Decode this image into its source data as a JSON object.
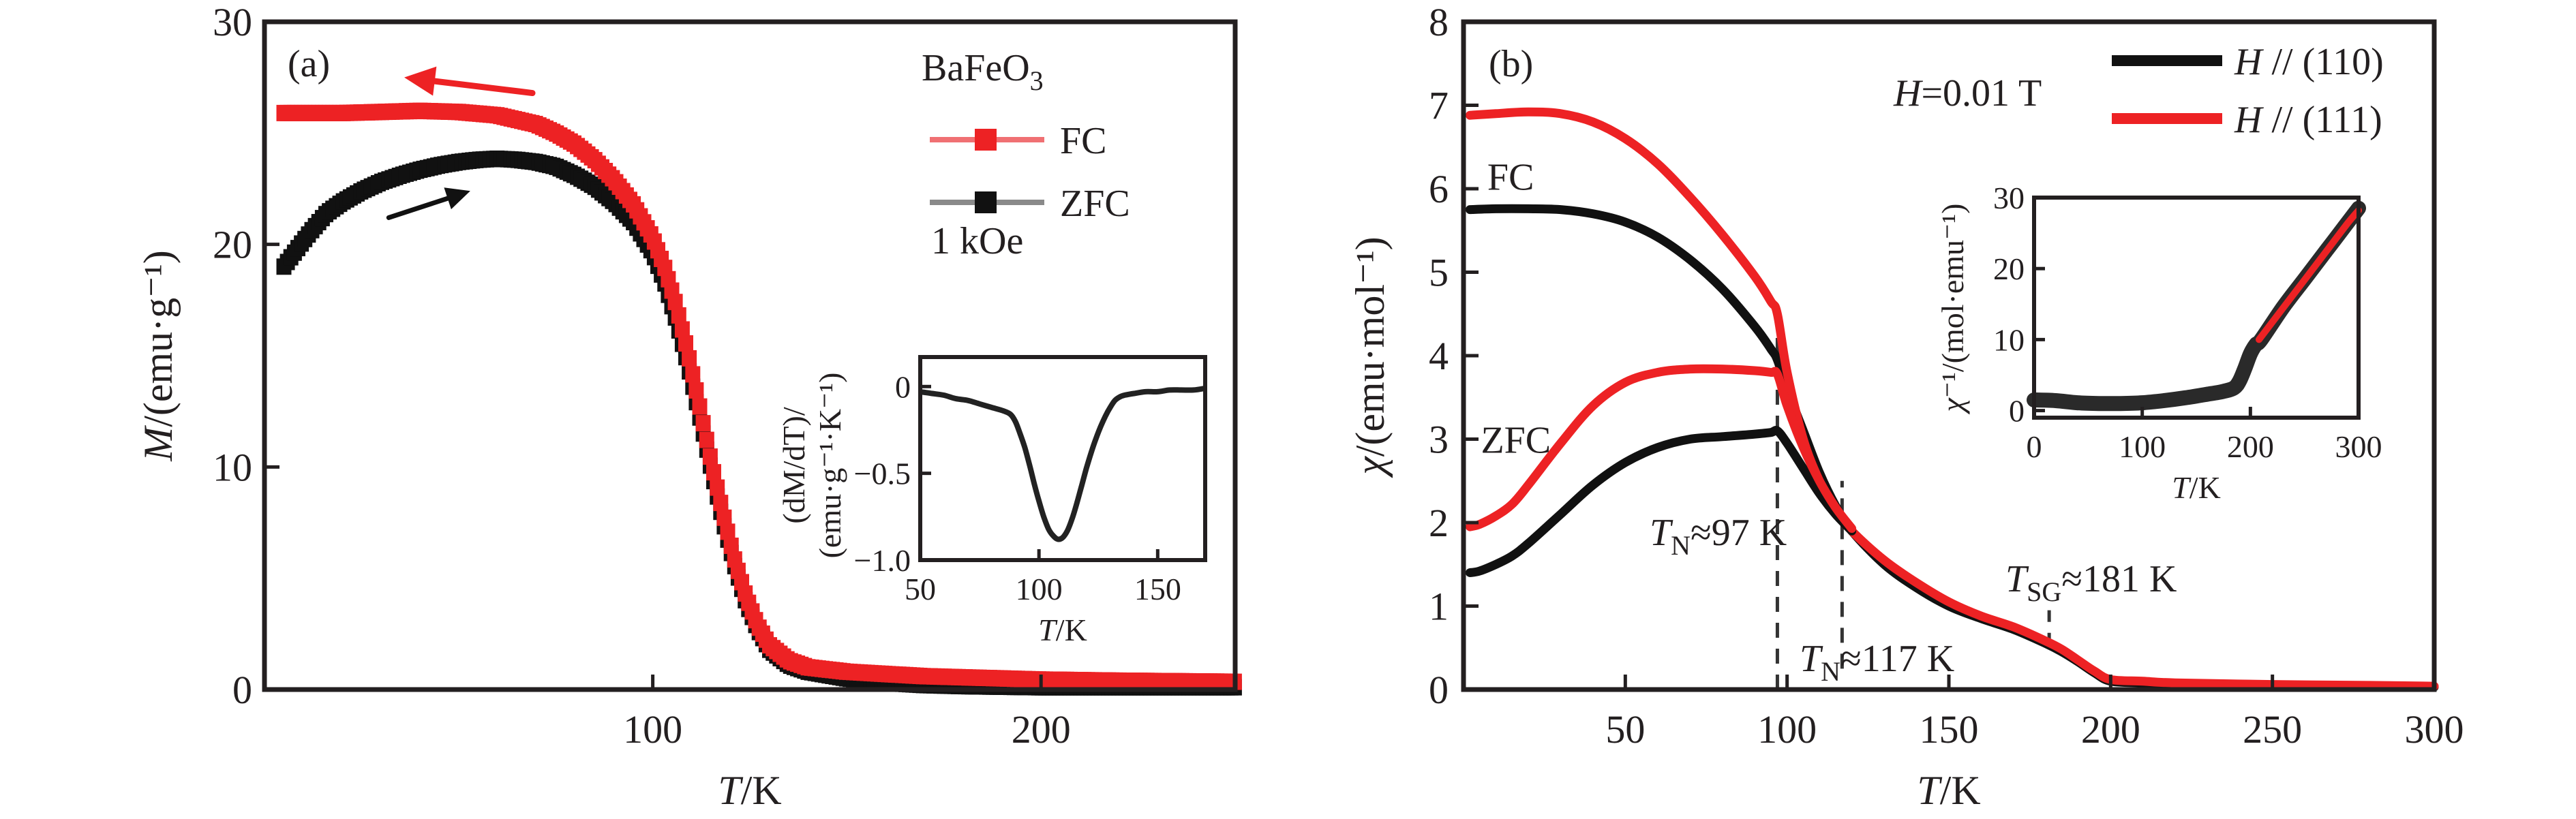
{
  "colors": {
    "red": "#ed2224",
    "black": "#111111",
    "ink": "#231f20",
    "legend_red_line": "#f07073",
    "legend_black_line": "#8a8a8a"
  },
  "chart_data": [
    {
      "panel": "a",
      "type": "scatter",
      "panel_label": "(a)",
      "xlabel": "T/K",
      "ylabel": "M/(emu·g⁻¹)",
      "xlim": [
        0,
        250
      ],
      "ylim": [
        0,
        30
      ],
      "xticks": [
        100,
        200
      ],
      "yticks": [
        0,
        10,
        20,
        30
      ],
      "legend": {
        "title": "BaFeO₃",
        "position": "top-right",
        "entries": [
          "FC",
          "ZFC"
        ],
        "note": "1 kOe"
      },
      "series": [
        {
          "name": "FC",
          "color": "red",
          "marker": "square",
          "x": [
            5,
            10,
            20,
            30,
            40,
            50,
            60,
            70,
            75,
            80,
            85,
            90,
            95,
            100,
            103,
            106,
            109,
            112,
            115,
            118,
            121,
            124,
            127,
            130,
            135,
            140,
            150,
            160,
            170,
            180,
            200,
            220,
            250
          ],
          "y": [
            25.9,
            25.9,
            25.9,
            25.95,
            26.0,
            25.95,
            25.8,
            25.4,
            25.0,
            24.5,
            23.8,
            22.9,
            21.8,
            20.3,
            19.0,
            17.3,
            15.2,
            12.8,
            10.3,
            8.0,
            5.9,
            4.2,
            2.9,
            2.0,
            1.3,
            1.0,
            0.8,
            0.7,
            0.6,
            0.55,
            0.45,
            0.4,
            0.35
          ]
        },
        {
          "name": "ZFC",
          "color": "black",
          "marker": "square",
          "x": [
            5,
            8,
            12,
            16,
            20,
            25,
            30,
            35,
            40,
            45,
            50,
            55,
            60,
            65,
            70,
            75,
            80,
            85,
            90,
            95,
            100,
            103,
            106,
            109,
            112,
            115,
            118,
            121,
            124,
            127,
            130,
            135,
            140,
            150,
            160,
            170,
            180,
            200,
            220,
            250
          ],
          "y": [
            19.0,
            19.7,
            20.6,
            21.4,
            21.9,
            22.4,
            22.8,
            23.1,
            23.35,
            23.55,
            23.7,
            23.8,
            23.85,
            23.8,
            23.7,
            23.5,
            23.1,
            22.6,
            21.9,
            21.0,
            19.6,
            18.3,
            16.6,
            14.6,
            12.3,
            9.9,
            7.6,
            5.6,
            3.9,
            2.7,
            1.8,
            1.1,
            0.8,
            0.5,
            0.3,
            0.2,
            0.15,
            0.1,
            0.1,
            0.1
          ]
        }
      ],
      "annotations": [
        {
          "type": "arrow",
          "color": "red",
          "from": [
            69,
            26.8
          ],
          "to": [
            36,
            27.5
          ]
        },
        {
          "type": "arrow",
          "color": "black",
          "from": [
            32,
            21.2
          ],
          "to": [
            53,
            22.4
          ]
        }
      ],
      "inset": {
        "type": "line",
        "xlabel": "T/K",
        "ylabel_line1": "(dM/dT)/",
        "ylabel_line2": "(emu·g⁻¹·K⁻¹)",
        "xlim": [
          50,
          170
        ],
        "ylim": [
          -1.0,
          0.17
        ],
        "xticks": [
          50,
          100,
          150
        ],
        "yticks": [
          0,
          -0.5,
          -1.0
        ],
        "ytick_labels": [
          "0",
          "−0.5",
          "−1.0"
        ],
        "series": [
          {
            "name": "dM/dT",
            "color": "black",
            "x": [
              50,
              55,
              60,
              65,
              70,
              75,
              80,
              85,
              88,
              90,
              92,
              94,
              96,
              98,
              100,
              102,
              104,
              106,
              108,
              110,
              112,
              114,
              116,
              118,
              120,
              122,
              124,
              126,
              128,
              130,
              132,
              134,
              136,
              140,
              145,
              150,
              155,
              160,
              165,
              170
            ],
            "y": [
              -0.03,
              -0.04,
              -0.05,
              -0.07,
              -0.08,
              -0.1,
              -0.12,
              -0.14,
              -0.16,
              -0.2,
              -0.27,
              -0.35,
              -0.45,
              -0.56,
              -0.66,
              -0.75,
              -0.82,
              -0.86,
              -0.88,
              -0.87,
              -0.83,
              -0.76,
              -0.67,
              -0.57,
              -0.47,
              -0.38,
              -0.3,
              -0.23,
              -0.17,
              -0.12,
              -0.08,
              -0.06,
              -0.05,
              -0.04,
              -0.03,
              -0.03,
              -0.02,
              -0.02,
              -0.02,
              -0.01
            ]
          }
        ]
      }
    },
    {
      "panel": "b",
      "type": "line",
      "panel_label": "(b)",
      "xlabel": "T/K",
      "ylabel": "χ/(emu·mol⁻¹)",
      "xlim": [
        0,
        300
      ],
      "ylim": [
        0,
        8
      ],
      "xticks": [
        50,
        100,
        150,
        200,
        250,
        300
      ],
      "yticks": [
        0,
        1,
        2,
        3,
        4,
        5,
        6,
        7,
        8
      ],
      "legend": {
        "position": "top-right",
        "note": "H=0.01 T",
        "entries": [
          "H // (110)",
          "H // (111)"
        ]
      },
      "series": [
        {
          "name": "H // (110) FC",
          "color": "black",
          "x": [
            2,
            10,
            20,
            30,
            40,
            50,
            60,
            70,
            80,
            90,
            95,
            97,
            100,
            105,
            110,
            115,
            120,
            130,
            140,
            150,
            160,
            170,
            180,
            185,
            190,
            195,
            200,
            210,
            220,
            250,
            280,
            300
          ],
          "y": [
            5.75,
            5.76,
            5.76,
            5.75,
            5.7,
            5.6,
            5.42,
            5.15,
            4.8,
            4.35,
            4.08,
            3.95,
            3.6,
            3.1,
            2.6,
            2.2,
            1.9,
            1.5,
            1.22,
            1.0,
            0.85,
            0.72,
            0.55,
            0.45,
            0.33,
            0.2,
            0.1,
            0.08,
            0.06,
            0.05,
            0.04,
            0.03
          ]
        },
        {
          "name": "H // (111) FC",
          "color": "red",
          "x": [
            2,
            10,
            20,
            30,
            40,
            50,
            60,
            70,
            80,
            90,
            95,
            97,
            100,
            105,
            110,
            115,
            120,
            130,
            140,
            150,
            160,
            170,
            180,
            185,
            190,
            195,
            200,
            210,
            220,
            250,
            280,
            300
          ],
          "y": [
            6.88,
            6.9,
            6.92,
            6.9,
            6.8,
            6.6,
            6.3,
            5.9,
            5.45,
            4.95,
            4.65,
            4.5,
            3.8,
            3.0,
            2.5,
            2.15,
            1.9,
            1.55,
            1.28,
            1.05,
            0.88,
            0.75,
            0.58,
            0.48,
            0.35,
            0.22,
            0.12,
            0.1,
            0.08,
            0.06,
            0.05,
            0.04
          ]
        },
        {
          "name": "H // (110) ZFC",
          "color": "black",
          "x": [
            2,
            5,
            10,
            15,
            20,
            30,
            40,
            50,
            60,
            70,
            80,
            90,
            95,
            97,
            100,
            105,
            110,
            115,
            120
          ],
          "y": [
            1.4,
            1.42,
            1.5,
            1.6,
            1.75,
            2.1,
            2.45,
            2.72,
            2.9,
            3.0,
            3.03,
            3.06,
            3.08,
            3.1,
            2.95,
            2.65,
            2.35,
            2.1,
            1.9
          ]
        },
        {
          "name": "H // (111) ZFC",
          "color": "red",
          "x": [
            2,
            5,
            10,
            15,
            20,
            30,
            40,
            50,
            60,
            70,
            80,
            90,
            95,
            97,
            100,
            105,
            110,
            115,
            120
          ],
          "y": [
            1.95,
            1.98,
            2.08,
            2.22,
            2.45,
            2.95,
            3.4,
            3.68,
            3.8,
            3.84,
            3.84,
            3.82,
            3.8,
            3.78,
            3.4,
            2.9,
            2.5,
            2.18,
            1.93
          ]
        }
      ],
      "curve_labels": [
        {
          "text": "FC",
          "x": 20,
          "y": 6.15
        },
        {
          "text": "ZFC",
          "x": 18,
          "y": 3.0
        }
      ],
      "markers": [
        {
          "T": 97,
          "label_main": "T",
          "label_sub": "N",
          "label_rest": "≈97 K",
          "dash_y": [
            0,
            4.6
          ]
        },
        {
          "T": 117,
          "label_main": "T",
          "label_sub": "N",
          "label_rest": "≈117 K",
          "dash_y": [
            0.25,
            2.5
          ]
        },
        {
          "T": 181,
          "label_main": "T",
          "label_sub": "SG",
          "label_rest": "≈181 K",
          "dash_y": [
            0.5,
            0.95
          ]
        }
      ],
      "inset": {
        "type": "line",
        "xlabel": "T/K",
        "ylabel": "χ⁻¹/(mol·emu⁻¹)",
        "xlim": [
          0,
          300
        ],
        "ylim": [
          -1,
          30
        ],
        "xticks": [
          0,
          100,
          200,
          300
        ],
        "yticks": [
          0,
          10,
          20,
          30
        ],
        "series": [
          {
            "name": "H // (110)",
            "color": "black",
            "x": [
              0,
              20,
              40,
              60,
              80,
              100,
              120,
              140,
              160,
              175,
              185,
              190,
              195,
              200,
              205,
              210,
              230,
              250,
              270,
              290,
              300
            ],
            "y": [
              1.5,
              1.4,
              1.1,
              1.0,
              1.0,
              1.1,
              1.4,
              1.8,
              2.3,
              2.7,
              3.2,
              4.2,
              6.0,
              8.0,
              9.3,
              10.0,
              14.5,
              18.5,
              22.5,
              26.5,
              28.5
            ]
          },
          {
            "name": "H // (111)",
            "color": "red",
            "x": [
              208,
              230,
              250,
              270,
              290,
              300
            ],
            "y": [
              10.0,
              14.4,
              18.4,
              22.4,
              26.4,
              28.2
            ]
          }
        ]
      }
    }
  ]
}
